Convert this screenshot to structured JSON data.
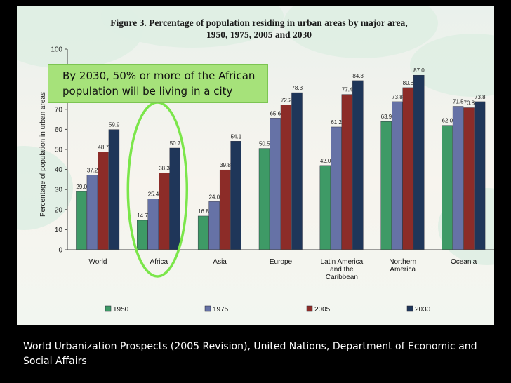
{
  "slide": {
    "callout_line1": "By 2030, 50% or more of the African",
    "callout_line2": "population will be living in a city",
    "source_text": "World Urbanization Prospects (2005 Revision), United Nations, Department of Economic and Social Affairs",
    "highlight_color": "#7be64a"
  },
  "chart_data": {
    "type": "bar",
    "title_line1": "Figure 3. Percentage of population residing in urban areas by major area,",
    "title_line2": "1950, 1975, 2005 and 2030",
    "ylabel": "Percentage of population in urban areas",
    "xlabel": "",
    "ylim": [
      0,
      100
    ],
    "yticks": [
      0,
      10,
      20,
      30,
      40,
      50,
      60,
      70,
      80,
      90,
      100
    ],
    "grid": false,
    "legend_position": "bottom",
    "highlighted_category": "Africa",
    "categories": [
      [
        "World"
      ],
      [
        "Africa"
      ],
      [
        "Asia"
      ],
      [
        "Europe"
      ],
      [
        "Latin America",
        "and the",
        "Caribbean"
      ],
      [
        "Northern",
        "America"
      ],
      [
        "Oceania"
      ]
    ],
    "series": [
      {
        "name": "1950",
        "color": "#3e9a66",
        "values": [
          "29.0",
          "14.7",
          "16.8",
          "50.5",
          "42.0",
          "63.9",
          "62.0"
        ]
      },
      {
        "name": "1975",
        "color": "#6672a6",
        "values": [
          "37.2",
          "25.4",
          "24.0",
          "65.6",
          "61.2",
          "73.8",
          "71.5"
        ]
      },
      {
        "name": "2005",
        "color": "#8c2c28",
        "values": [
          "48.7",
          "38.3",
          "39.8",
          "72.2",
          "77.4",
          "80.8",
          "70.8"
        ]
      },
      {
        "name": "2030",
        "color": "#1f3659",
        "values": [
          "59.9",
          "50.7",
          "54.1",
          "78.3",
          "84.3",
          "87.0",
          "73.8"
        ]
      }
    ]
  }
}
